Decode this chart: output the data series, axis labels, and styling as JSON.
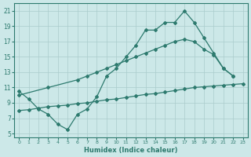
{
  "xlabel": "Humidex (Indice chaleur)",
  "xlim": [
    -0.5,
    23.5
  ],
  "ylim": [
    4.5,
    22
  ],
  "xticks": [
    0,
    1,
    2,
    3,
    4,
    5,
    6,
    7,
    8,
    9,
    10,
    11,
    12,
    13,
    14,
    15,
    16,
    17,
    18,
    19,
    20,
    21,
    22,
    23
  ],
  "yticks": [
    5,
    7,
    9,
    11,
    13,
    15,
    17,
    19,
    21
  ],
  "bg_color": "#cce8e8",
  "grid_color": "#aacccc",
  "line_color": "#2d7a6e",
  "line1_x": [
    0,
    1,
    2,
    3,
    4,
    5,
    6,
    7,
    8,
    9,
    10,
    11,
    12,
    13,
    14,
    15,
    16,
    17,
    18,
    19,
    20,
    21,
    22
  ],
  "line1_y": [
    10.5,
    9.5,
    8.2,
    7.5,
    6.2,
    5.5,
    7.5,
    8.2,
    9.8,
    12.5,
    13.5,
    15.0,
    16.5,
    18.5,
    18.5,
    19.5,
    19.5,
    21.0,
    19.5,
    17.5,
    15.5,
    13.5,
    12.5
  ],
  "line2_x": [
    0,
    3,
    6,
    7,
    8,
    9,
    10,
    11,
    12,
    13,
    14,
    15,
    16,
    17,
    18,
    19,
    20,
    21,
    22
  ],
  "line2_y": [
    10.0,
    11.0,
    12.0,
    12.5,
    13.0,
    13.5,
    14.0,
    14.5,
    15.0,
    15.5,
    16.0,
    16.5,
    17.0,
    17.3,
    17.0,
    16.0,
    15.3,
    13.5,
    12.5
  ],
  "line3_x": [
    0,
    1,
    2,
    3,
    4,
    5,
    6,
    7,
    8,
    9,
    10,
    11,
    12,
    13,
    14,
    15,
    16,
    17,
    18,
    19,
    20,
    21,
    22,
    23
  ],
  "line3_y": [
    8.0,
    8.1,
    8.3,
    8.5,
    8.6,
    8.7,
    8.9,
    9.0,
    9.2,
    9.4,
    9.5,
    9.7,
    9.9,
    10.1,
    10.2,
    10.4,
    10.6,
    10.8,
    11.0,
    11.1,
    11.2,
    11.3,
    11.4,
    11.5
  ]
}
